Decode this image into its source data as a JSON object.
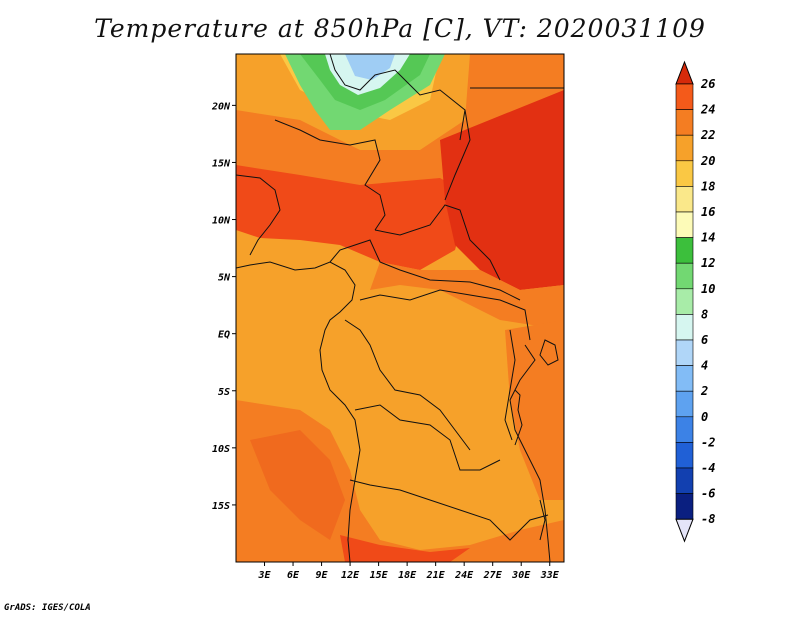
{
  "title": "Temperature at 850hPa [C], VT: 2020031109",
  "credit": "GrADS: IGES/COLA",
  "map": {
    "variable": "Temperature at 850hPa",
    "units": "C",
    "valid_time": "2020031109",
    "lon_range": [
      0,
      34.5
    ],
    "lat_range": [
      -20,
      24.5
    ],
    "x_ticks": [
      "3E",
      "6E",
      "9E",
      "12E",
      "15E",
      "18E",
      "21E",
      "24E",
      "27E",
      "30E",
      "33E"
    ],
    "y_ticks": [
      "20N",
      "15N",
      "10N",
      "5N",
      "EQ",
      "5S",
      "10S",
      "15S"
    ],
    "regions": [
      {
        "name": "north-green",
        "color": "#55c855"
      },
      {
        "name": "north-blue",
        "color": "#9fcdf4"
      },
      {
        "name": "hot-east",
        "color": "#e23012"
      },
      {
        "name": "hot-west",
        "color": "#f04a18"
      },
      {
        "name": "south-band",
        "color": "#f06a1e"
      }
    ]
  },
  "colorbar": {
    "levels": [
      "26",
      "24",
      "22",
      "20",
      "18",
      "16",
      "14",
      "12",
      "10",
      "8",
      "6",
      "4",
      "2",
      "0",
      "-2",
      "-4",
      "-6",
      "-8"
    ],
    "colors": [
      "#f03a10",
      "#f45a1a",
      "#f47d22",
      "#f6a12a",
      "#fac844",
      "#fae88a",
      "#fdfbb8",
      "#3cbf3c",
      "#72d872",
      "#a8eca8",
      "#d6f6f0",
      "#b0d6f8",
      "#82bcf6",
      "#5ea2f0",
      "#3c82e6",
      "#2060d6",
      "#1240b0",
      "#0a1f80"
    ],
    "top_arrow_color": "#d62a0a",
    "bottom_arrow_color": "#e4e4f8"
  }
}
